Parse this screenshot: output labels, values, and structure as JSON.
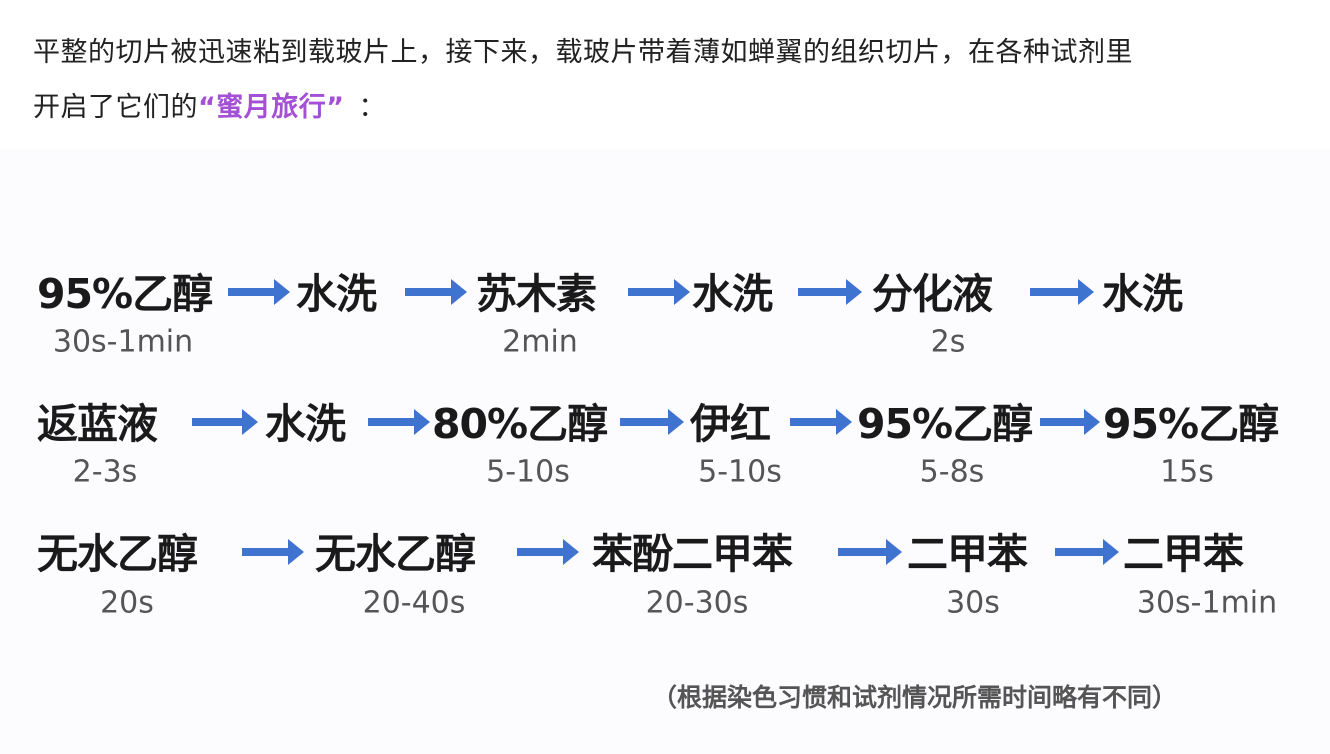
{
  "paragraph": {
    "line1": "平整的切片被迅速粘到载玻片上，接下来，载玻片带着薄如蝉翼的组织切片，在各种试剂里",
    "line2_prefix": "开启了它们的",
    "highlight": "“蜜月旅行”",
    "line2_suffix": "：",
    "highlight_color": "#a34fd6"
  },
  "diagram": {
    "arrow_color": "#3e73d0",
    "rows": [
      {
        "steps": [
          {
            "name": "95%乙醇",
            "time": "30s-1min"
          },
          {
            "name": "水洗",
            "time": ""
          },
          {
            "name": "苏木素",
            "time": "2min"
          },
          {
            "name": "水洗",
            "time": ""
          },
          {
            "name": "分化液",
            "time": "2s"
          },
          {
            "name": "水洗",
            "time": ""
          }
        ]
      },
      {
        "steps": [
          {
            "name": "返蓝液",
            "time": "2-3s"
          },
          {
            "name": "水洗",
            "time": ""
          },
          {
            "name": "80%乙醇",
            "time": "5-10s"
          },
          {
            "name": "伊红",
            "time": "5-10s"
          },
          {
            "name": "95%乙醇",
            "time": "5-8s"
          },
          {
            "name": "95%乙醇",
            "time": "15s"
          }
        ]
      },
      {
        "steps": [
          {
            "name": "无水乙醇",
            "time": "20s"
          },
          {
            "name": "无水乙醇",
            "time": "20-40s"
          },
          {
            "name": "苯酚二甲苯",
            "time": "20-30s"
          },
          {
            "name": "二甲苯",
            "time": "30s"
          },
          {
            "name": "二甲苯",
            "time": "30s-1min"
          }
        ]
      }
    ],
    "note": "（根据染色习惯和试剂情况所需时间略有不同）"
  }
}
